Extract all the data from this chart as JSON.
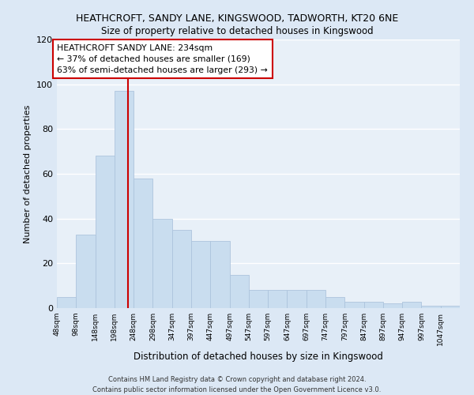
{
  "title": "HEATHCROFT, SANDY LANE, KINGSWOOD, TADWORTH, KT20 6NE",
  "subtitle": "Size of property relative to detached houses in Kingswood",
  "xlabel": "Distribution of detached houses by size in Kingswood",
  "ylabel": "Number of detached properties",
  "bar_color": "#c9ddef",
  "bar_edge_color": "#adc4dd",
  "bin_labels": [
    "48sqm",
    "98sqm",
    "148sqm",
    "198sqm",
    "248sqm",
    "298sqm",
    "347sqm",
    "397sqm",
    "447sqm",
    "497sqm",
    "547sqm",
    "597sqm",
    "647sqm",
    "697sqm",
    "747sqm",
    "797sqm",
    "847sqm",
    "897sqm",
    "947sqm",
    "997sqm",
    "1047sqm"
  ],
  "values": [
    5,
    33,
    68,
    97,
    58,
    40,
    35,
    30,
    30,
    15,
    8,
    8,
    8,
    8,
    5,
    3,
    3,
    2,
    3,
    1,
    1
  ],
  "bin_width": 50,
  "ylim": [
    0,
    120
  ],
  "yticks": [
    0,
    20,
    40,
    60,
    80,
    100,
    120
  ],
  "red_line_x": 234,
  "annotation_title": "HEATHCROFT SANDY LANE: 234sqm",
  "annotation_line1": "← 37% of detached houses are smaller (169)",
  "annotation_line2": "63% of semi-detached houses are larger (293) →",
  "annotation_box_facecolor": "#ffffff",
  "annotation_box_edgecolor": "#cc0000",
  "red_line_color": "#cc0000",
  "fig_facecolor": "#dce8f5",
  "ax_facecolor": "#e8f0f8",
  "grid_color": "#ffffff",
  "footer_line1": "Contains HM Land Registry data © Crown copyright and database right 2024.",
  "footer_line2": "Contains public sector information licensed under the Open Government Licence v3.0."
}
